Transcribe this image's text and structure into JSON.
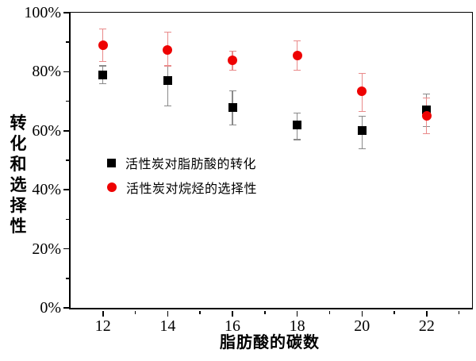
{
  "chart_data": {
    "type": "scatter",
    "title": "",
    "xlabel": "脂肪酸的碳数",
    "ylabel": "转化和选择性",
    "x": [
      12,
      14,
      16,
      18,
      20,
      22
    ],
    "xlim": [
      11,
      23.4
    ],
    "ylim": [
      0,
      100
    ],
    "grid": false,
    "legend_position": "inside-left-middle",
    "x_major_ticks": [
      12,
      14,
      16,
      18,
      20,
      22
    ],
    "x_minor_ticks": [
      13,
      15,
      17,
      19,
      21,
      23
    ],
    "y_major_ticks": [
      0,
      20,
      40,
      60,
      80,
      100
    ],
    "y_tick_labels": [
      "0%",
      "20%",
      "40%",
      "60%",
      "80%",
      "100%"
    ],
    "y_minor_ticks": [
      10,
      30,
      50,
      70,
      90
    ],
    "series": [
      {
        "name": "活性炭对脂肪酸的转化",
        "marker": "square",
        "color": "#000000",
        "error_color": "#8a8a8a",
        "values": [
          79,
          77,
          68,
          62,
          60,
          67
        ],
        "err_up": [
          3,
          5,
          5.5,
          4,
          5,
          5.5
        ],
        "err_down": [
          3,
          8.5,
          6,
          5,
          6,
          5.5
        ]
      },
      {
        "name": "活性炭对烷烃的选择性",
        "marker": "circle",
        "color": "#ee0202",
        "error_color": "#e98a8a",
        "values": [
          89,
          87.5,
          84,
          85.5,
          73.5,
          65
        ],
        "err_up": [
          5.5,
          6,
          3,
          5,
          6,
          6
        ],
        "err_down": [
          5.5,
          5.5,
          3.5,
          5,
          7,
          6
        ]
      }
    ]
  }
}
